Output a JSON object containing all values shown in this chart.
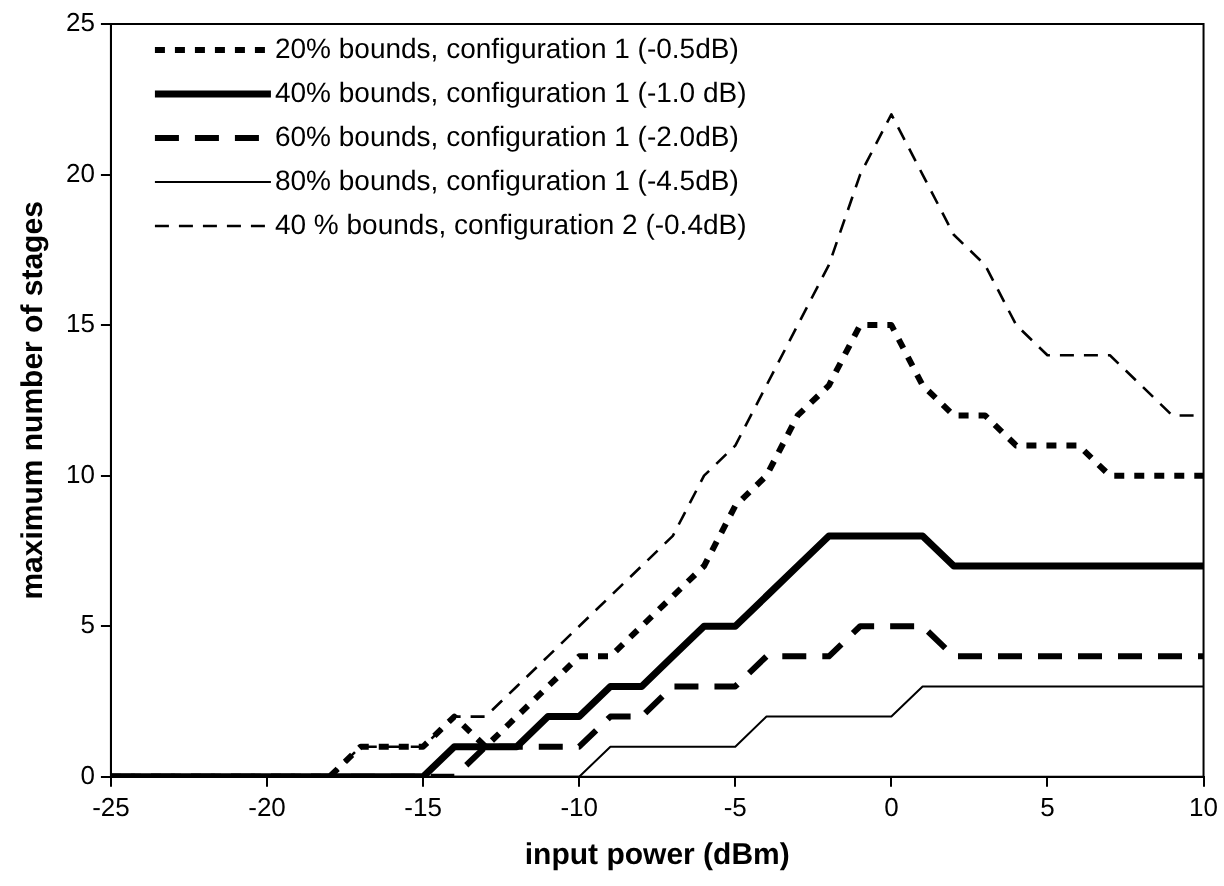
{
  "chart_data": {
    "type": "line",
    "xlabel": "input power (dBm)",
    "ylabel": "maximum number of stages",
    "x": [
      -25,
      -24,
      -23,
      -22,
      -21,
      -20,
      -19,
      -18,
      -17,
      -16,
      -15,
      -14,
      -13,
      -12,
      -11,
      -10,
      -9,
      -8,
      -7,
      -6,
      -5,
      -4,
      -3,
      -2,
      -1,
      0,
      1,
      2,
      3,
      4,
      5,
      6,
      7,
      8,
      9,
      10
    ],
    "series": [
      {
        "name": "20% bounds, configuration 1 (-0.5dB)",
        "color": "#000000",
        "line_style": "dotted",
        "values": [
          0,
          0,
          0,
          0,
          0,
          0,
          0,
          0,
          1,
          1,
          1,
          2,
          1,
          2,
          3,
          4,
          4,
          5,
          6,
          7,
          9,
          10,
          12,
          13,
          15,
          15,
          13,
          12,
          12,
          11,
          11,
          11,
          10,
          10,
          10,
          10
        ]
      },
      {
        "name": "40% bounds, configuration 1 (-1.0 dB)",
        "color": "#000000",
        "line_style": "solid",
        "values": [
          0,
          0,
          0,
          0,
          0,
          0,
          0,
          0,
          0,
          0,
          0,
          1,
          1,
          1,
          2,
          2,
          3,
          3,
          4,
          5,
          5,
          6,
          7,
          8,
          8,
          8,
          8,
          7,
          7,
          7,
          7,
          7,
          7,
          7,
          7,
          7
        ]
      },
      {
        "name": "60% bounds, configuration 1 (-2.0dB)",
        "color": "#000000",
        "line_style": "dashed",
        "values": [
          0,
          0,
          0,
          0,
          0,
          0,
          0,
          0,
          0,
          0,
          0,
          0,
          1,
          1,
          1,
          1,
          2,
          2,
          3,
          3,
          3,
          4,
          4,
          4,
          5,
          5,
          5,
          4,
          4,
          4,
          4,
          4,
          4,
          4,
          4,
          4
        ]
      },
      {
        "name": "80% bounds, configuration 1 (-4.5dB)",
        "color": "#000000",
        "line_style": "solid",
        "values": [
          0,
          0,
          0,
          0,
          0,
          0,
          0,
          0,
          0,
          0,
          0,
          0,
          0,
          0,
          0,
          0,
          1,
          1,
          1,
          1,
          1,
          2,
          2,
          2,
          2,
          2,
          3,
          3,
          3,
          3,
          3,
          3,
          3,
          3,
          3,
          3
        ]
      },
      {
        "name": "40 % bounds, configuration 2 (-0.4dB)",
        "color": "#000000",
        "line_style": "dashed",
        "values": [
          0,
          0,
          0,
          0,
          0,
          0,
          0,
          0,
          1,
          1,
          1,
          2,
          2,
          3,
          4,
          5,
          6,
          7,
          8,
          10,
          11,
          13,
          15,
          17,
          20,
          22,
          20,
          18,
          17,
          15,
          14,
          14,
          14,
          13,
          12,
          12
        ]
      }
    ],
    "xlim": [
      -25,
      10
    ],
    "xticks": [
      -25,
      -20,
      -15,
      -10,
      -5,
      0,
      5,
      10
    ],
    "ylim": [
      0,
      25
    ],
    "yticks": [
      0,
      5,
      10,
      15,
      20,
      25
    ],
    "grid": false,
    "legend": "top left",
    "marker": "none"
  }
}
